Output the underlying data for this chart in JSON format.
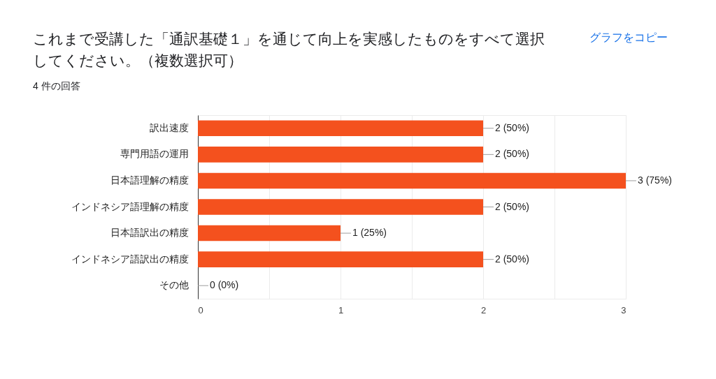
{
  "chart_data": {
    "type": "bar",
    "orientation": "horizontal",
    "title": "これまで受講した「通訳基礎１」を通じて向上を実感したものをすべて選択してください。（複数選択可）",
    "subtitle": "4 件の回答",
    "categories": [
      "訳出速度",
      "専門用語の運用",
      "日本語理解の精度",
      "インドネシア語理解の精度",
      "日本語訳出の精度",
      "インドネシア語訳出の精度",
      "その他"
    ],
    "values": [
      2,
      2,
      3,
      2,
      1,
      2,
      0
    ],
    "value_labels": [
      "2 (50%)",
      "2 (50%)",
      "3 (75%)",
      "2 (50%)",
      "1 (25%)",
      "2 (50%)",
      "0 (0%)"
    ],
    "color": "#f4511e",
    "xlim": [
      0,
      3
    ],
    "xticks": [
      0,
      {
        "value": 0.5,
        "label": null
      },
      1,
      {
        "value": 1.5,
        "label": null
      },
      2,
      {
        "value": 2.5,
        "label": null
      },
      3
    ],
    "grid": "x",
    "annotations": [
      "グラフをコピー"
    ]
  }
}
